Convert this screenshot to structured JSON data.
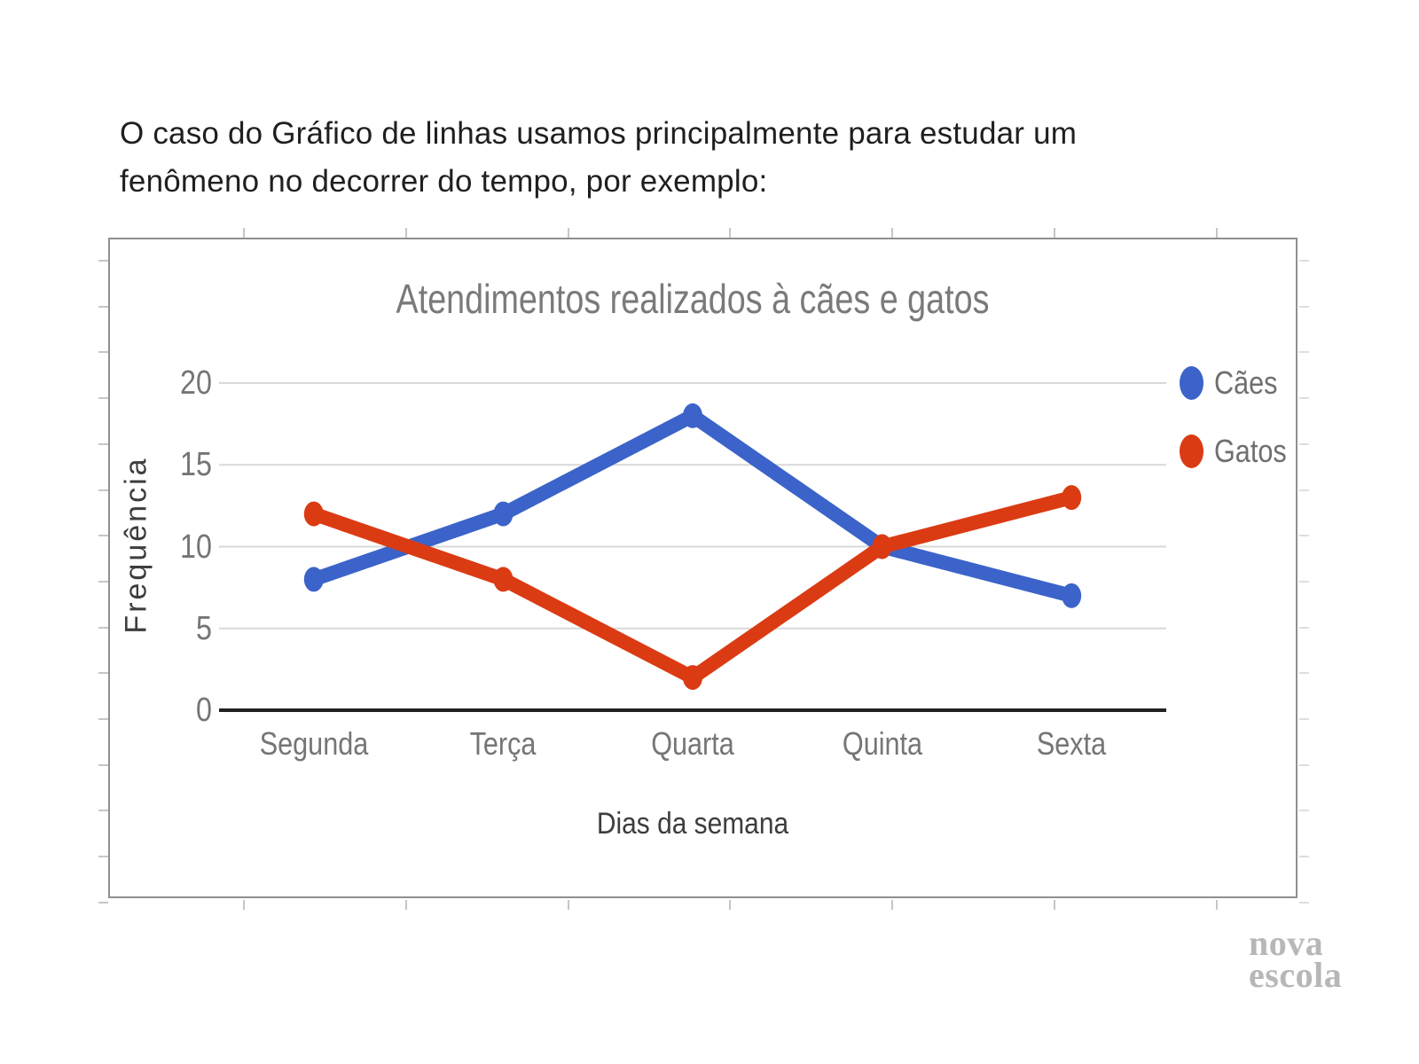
{
  "slide": {
    "intro_lines": [
      "O caso do Gráfico de linhas usamos principalmente para estudar um",
      "fenômeno no decorrer do tempo, por exemplo:"
    ],
    "logo_line1": "nova",
    "logo_line2": "escola"
  },
  "chart_data": {
    "type": "line",
    "title": "Atendimentos realizados à cães e gatos",
    "xlabel": "Dias da semana",
    "ylabel": "Frequência",
    "categories": [
      "Segunda",
      "Terça",
      "Quarta",
      "Quinta",
      "Sexta"
    ],
    "series": [
      {
        "name": "Cães",
        "color": "#3B63C9",
        "values": [
          8,
          12,
          18,
          10,
          7
        ]
      },
      {
        "name": "Gatos",
        "color": "#DB3B13",
        "values": [
          12,
          8,
          2,
          10,
          13
        ]
      }
    ],
    "yticks": [
      0,
      5,
      10,
      15,
      20
    ],
    "ylim": [
      0,
      20
    ],
    "grid": true,
    "legend_position": "right",
    "axis_color": "#212121",
    "gridline_color": "#d9d9d9"
  }
}
